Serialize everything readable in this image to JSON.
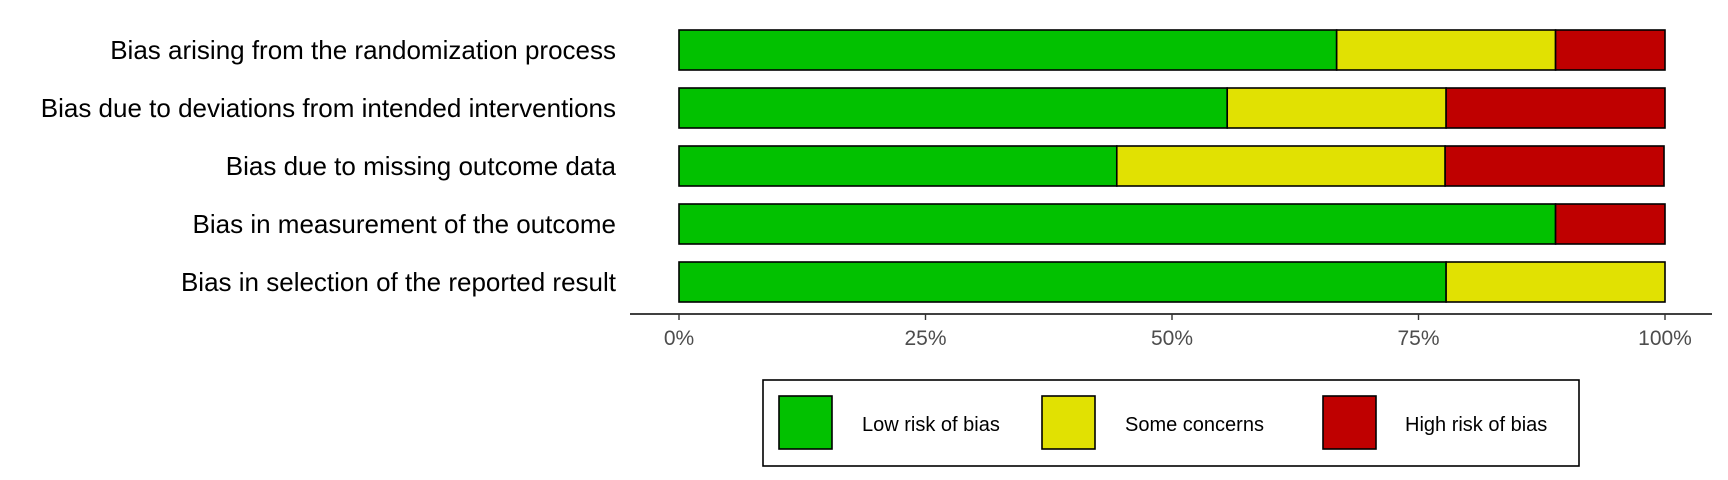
{
  "chart_data": {
    "type": "bar",
    "orientation": "horizontal",
    "stacked": true,
    "categories": [
      "Bias arising from the randomization process",
      "Bias due to deviations from intended interventions",
      "Bias due to missing outcome data",
      "Bias in measurement of the outcome",
      "Bias in selection of the reported result"
    ],
    "series": [
      {
        "name": "Low risk of bias",
        "color": "#02c100",
        "values": [
          66.7,
          55.6,
          44.4,
          88.9,
          77.8
        ]
      },
      {
        "name": "Some concerns",
        "color": "#e1e102",
        "values": [
          22.2,
          22.2,
          33.3,
          0,
          22.2
        ]
      },
      {
        "name": "High risk of bias",
        "color": "#bf0000",
        "values": [
          11.1,
          22.2,
          22.2,
          11.1,
          0
        ]
      }
    ],
    "xlim": [
      0,
      100
    ],
    "xticks": [
      0,
      25,
      50,
      75,
      100
    ],
    "xtick_labels": [
      "0%",
      "25%",
      "50%",
      "75%",
      "100%"
    ],
    "title": "",
    "xlabel": "",
    "ylabel": "",
    "grid": false,
    "legend_position": "bottom"
  }
}
